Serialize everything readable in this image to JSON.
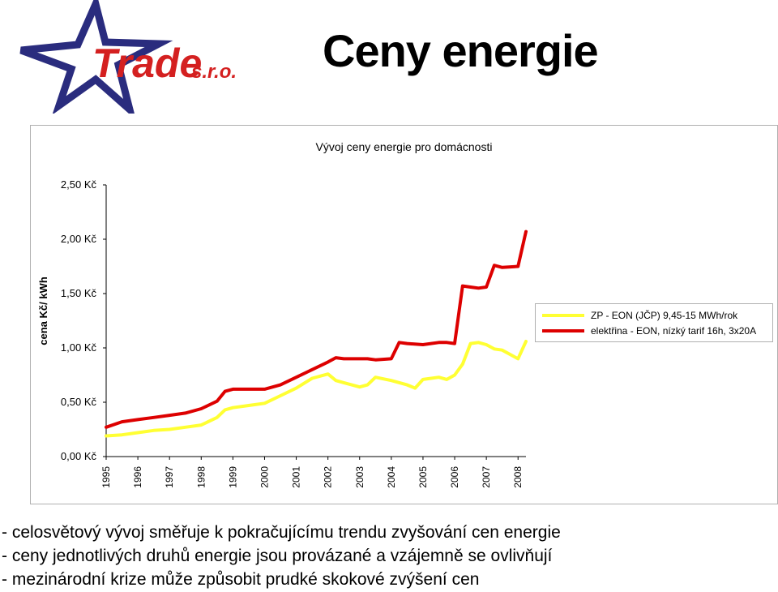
{
  "logo": {
    "text": "Trade",
    "suffix": "s.r.o."
  },
  "page_title": "Ceny energie",
  "bullets": [
    "- celosvětový vývoj směřuje k pokračujícímu trendu zvyšování cen energie",
    "- ceny jednotlivých druhů energie jsou provázané a vzájemně se ovlivňují",
    "- mezinárodní krize může způsobit prudké skokové zvýšení cen"
  ],
  "colors": {
    "series_zp": "#ffff33",
    "series_el": "#dd0000",
    "gridline": "#000000"
  },
  "chart_data": {
    "type": "line",
    "title": "Vývoj ceny  energie  pro domácnosti",
    "ylabel": "cena Kč/ kWh",
    "xlabel": "",
    "ylim": [
      0,
      2.5
    ],
    "xlim": [
      1995,
      2008.25
    ],
    "yticks": [
      0,
      0.5,
      1.0,
      1.5,
      2.0,
      2.5
    ],
    "ytick_labels": [
      "0,00 Kč",
      "0,50 Kč",
      "1,00 Kč",
      "1,50 Kč",
      "2,00 Kč",
      "2,50 Kč"
    ],
    "xtick_labels": [
      "1995",
      "1996",
      "1997",
      "1998",
      "1999",
      "2000",
      "2001",
      "2002",
      "2003",
      "2004",
      "2005",
      "2006",
      "2007",
      "2008"
    ],
    "legend_position": "right",
    "grid": false,
    "series": [
      {
        "name": "ZP - EON (JČP) 9,45-15 MWh/rok",
        "color": "#ffff33",
        "x": [
          1995,
          1995.5,
          1996,
          1996.5,
          1997,
          1997.5,
          1998,
          1998.5,
          1998.75,
          1999,
          1999.5,
          2000,
          2000.5,
          2001,
          2001.5,
          2002,
          2002.25,
          2002.5,
          2003,
          2003.25,
          2003.5,
          2004,
          2004.5,
          2004.75,
          2005,
          2005.5,
          2005.75,
          2006,
          2006.25,
          2006.5,
          2006.75,
          2007,
          2007.25,
          2007.5,
          2008,
          2008.25
        ],
        "y": [
          0.19,
          0.2,
          0.22,
          0.24,
          0.25,
          0.27,
          0.29,
          0.36,
          0.43,
          0.45,
          0.47,
          0.49,
          0.56,
          0.63,
          0.72,
          0.76,
          0.7,
          0.68,
          0.64,
          0.66,
          0.73,
          0.7,
          0.66,
          0.63,
          0.71,
          0.73,
          0.71,
          0.75,
          0.85,
          1.04,
          1.05,
          1.03,
          0.99,
          0.98,
          0.9,
          1.06
        ]
      },
      {
        "name": "elektřina - EON, nízký tarif 16h, 3x20A",
        "color": "#dd0000",
        "x": [
          1995,
          1995.5,
          1996,
          1996.5,
          1997,
          1997.5,
          1998,
          1998.5,
          1998.75,
          1999,
          1999.5,
          2000,
          2000.5,
          2001,
          2001.5,
          2002,
          2002.25,
          2002.5,
          2003,
          2003.25,
          2003.5,
          2004,
          2004.25,
          2004.5,
          2005,
          2005.5,
          2005.75,
          2006,
          2006.25,
          2006.5,
          2006.75,
          2007,
          2007.25,
          2007.5,
          2008,
          2008.25
        ],
        "y": [
          0.27,
          0.32,
          0.34,
          0.36,
          0.38,
          0.4,
          0.44,
          0.51,
          0.6,
          0.62,
          0.62,
          0.62,
          0.66,
          0.73,
          0.8,
          0.87,
          0.91,
          0.9,
          0.9,
          0.9,
          0.89,
          0.9,
          1.05,
          1.04,
          1.03,
          1.05,
          1.05,
          1.04,
          1.57,
          1.56,
          1.55,
          1.56,
          1.76,
          1.74,
          1.75,
          2.07
        ]
      }
    ]
  }
}
